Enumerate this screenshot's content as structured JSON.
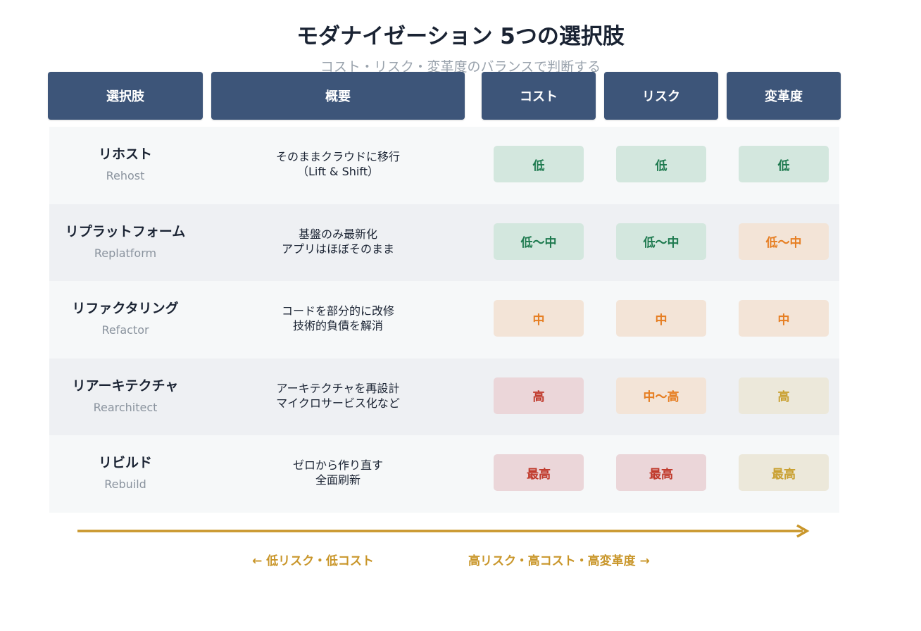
{
  "title": "モダナイゼーション 5つの選択肢",
  "subtitle": "コスト・リスク・変革度のバランスで判断する",
  "headers": [
    "選択肢",
    "概要",
    "コスト",
    "リスク",
    "変革度"
  ],
  "rows": [
    {
      "name": "リホスト",
      "en": "Rehost",
      "desc": [
        "そのままクラウドに移行",
        "（Lift & Shift）"
      ],
      "levels": [
        {
          "text": "低",
          "tone": "green"
        },
        {
          "text": "低",
          "tone": "green"
        },
        {
          "text": "低",
          "tone": "green"
        }
      ]
    },
    {
      "name": "リプラットフォーム",
      "en": "Replatform",
      "desc": [
        "基盤のみ最新化",
        "アプリはほぼそのまま"
      ],
      "levels": [
        {
          "text": "低〜中",
          "tone": "green"
        },
        {
          "text": "低〜中",
          "tone": "green"
        },
        {
          "text": "低〜中",
          "tone": "orange"
        }
      ]
    },
    {
      "name": "リファクタリング",
      "en": "Refactor",
      "desc": [
        "コードを部分的に改修",
        "技術的負債を解消"
      ],
      "levels": [
        {
          "text": "中",
          "tone": "orange"
        },
        {
          "text": "中",
          "tone": "orange"
        },
        {
          "text": "中",
          "tone": "orange"
        }
      ]
    },
    {
      "name": "リアーキテクチャ",
      "en": "Rearchitect",
      "desc": [
        "アーキテクチャを再設計",
        "マイクロサービス化など"
      ],
      "levels": [
        {
          "text": "高",
          "tone": "red"
        },
        {
          "text": "中〜高",
          "tone": "orange"
        },
        {
          "text": "高",
          "tone": "gold"
        }
      ]
    },
    {
      "name": "リビルド",
      "en": "Rebuild",
      "desc": [
        "ゼロから作り直す",
        "全面刷新"
      ],
      "levels": [
        {
          "text": "最高",
          "tone": "red"
        },
        {
          "text": "最高",
          "tone": "red"
        },
        {
          "text": "最高",
          "tone": "gold"
        }
      ]
    }
  ],
  "scale": {
    "left_label": "← 低リスク・低コスト",
    "right_label": "高リスク・高コスト・高変革度 →"
  },
  "colors": {
    "header": "#3d5579",
    "arrow": "#c9962a",
    "green": "#1e7a4f",
    "orange": "#e67e22",
    "red": "#c0392b",
    "gold": "#c9a030"
  }
}
